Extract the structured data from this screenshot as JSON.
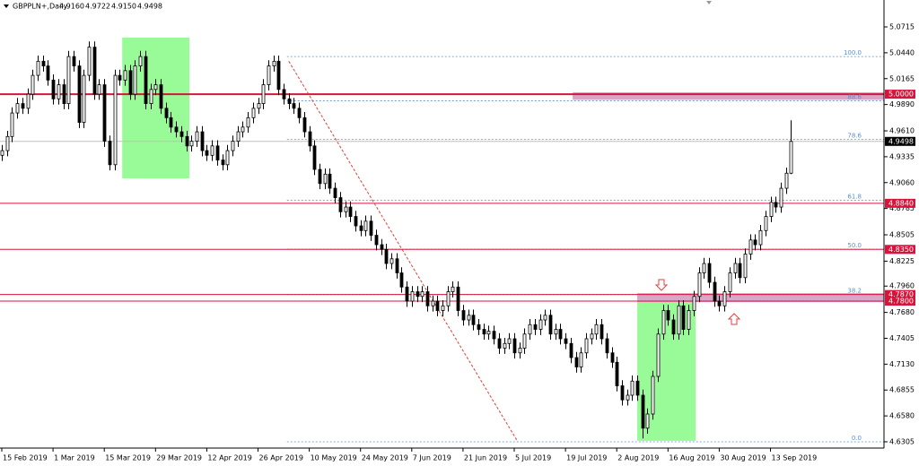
{
  "chart_data": {
    "type": "candlestick",
    "title": "GBPPLN+,Daily",
    "header_values": [
      "4.9160",
      "4.9722",
      "4.9150",
      "4.9498"
    ],
    "open": [
      4.935,
      4.94,
      4.955,
      4.98,
      4.99,
      4.985,
      5.0,
      5.02,
      5.035,
      5.03,
      5.015,
      4.995,
      5.01,
      4.99,
      5.04,
      5.03,
      4.97,
      5.02,
      5.05,
      5.0,
      5.01,
      4.95,
      4.925,
      5.02,
      5.015,
      5.025,
      5.0,
      5.03,
      5.04,
      4.99,
      5.005,
      5.01,
      4.985,
      4.975,
      4.965,
      4.96,
      4.955,
      4.945,
      4.95,
      4.96,
      4.94,
      4.935,
      4.945,
      4.93,
      4.925,
      4.94,
      4.95,
      4.96,
      4.965,
      4.975,
      4.985,
      4.99,
      5.01,
      5.03,
      5.035,
      5.005,
      4.995,
      4.99,
      4.985,
      4.975,
      4.96,
      4.945,
      4.92,
      4.905,
      4.915,
      4.9,
      4.89,
      4.875,
      4.88,
      4.87,
      4.86,
      4.855,
      4.865,
      4.85,
      4.84,
      4.835,
      4.82,
      4.825,
      4.81,
      4.795,
      4.78,
      4.79,
      4.785,
      4.79,
      4.775,
      4.78,
      4.77,
      4.775,
      4.79,
      4.795,
      4.77,
      4.76,
      4.765,
      4.755,
      4.75,
      4.745,
      4.748,
      4.74,
      4.73,
      4.735,
      4.74,
      4.725,
      4.73,
      4.745,
      4.755,
      4.75,
      4.76,
      4.765,
      4.745,
      4.75,
      4.74,
      4.735,
      4.72,
      4.71,
      4.725,
      4.74,
      4.745,
      4.755,
      4.74,
      4.725,
      4.715,
      4.69,
      4.675,
      4.68,
      4.695,
      4.68,
      4.645,
      4.66,
      4.7,
      4.745,
      4.77,
      4.76,
      4.745,
      4.775,
      4.75,
      4.77,
      4.785,
      4.81,
      4.82,
      4.8,
      4.78,
      4.775,
      4.79,
      4.81,
      4.82,
      4.805,
      4.83,
      4.845,
      4.84,
      4.855,
      4.87,
      4.885,
      4.88,
      4.9,
      4.916
    ],
    "high": [
      4.946,
      4.961,
      4.986,
      4.996,
      4.996,
      5.006,
      5.026,
      5.041,
      5.041,
      5.036,
      5.021,
      5.016,
      5.016,
      5.046,
      5.046,
      5.036,
      5.026,
      5.056,
      5.056,
      5.016,
      5.016,
      4.956,
      5.026,
      5.026,
      5.031,
      5.031,
      5.036,
      5.046,
      5.046,
      5.011,
      5.016,
      5.016,
      4.991,
      4.981,
      4.971,
      4.966,
      4.961,
      4.956,
      4.966,
      4.966,
      4.946,
      4.951,
      4.951,
      4.936,
      4.946,
      4.956,
      4.966,
      4.971,
      4.981,
      4.991,
      4.996,
      5.016,
      5.036,
      5.041,
      5.041,
      5.011,
      5.001,
      4.996,
      4.991,
      4.981,
      4.966,
      4.951,
      4.926,
      4.921,
      4.921,
      4.906,
      4.896,
      4.886,
      4.886,
      4.876,
      4.866,
      4.871,
      4.871,
      4.856,
      4.846,
      4.841,
      4.831,
      4.831,
      4.816,
      4.801,
      4.796,
      4.796,
      4.796,
      4.796,
      4.786,
      4.786,
      4.781,
      4.796,
      4.801,
      4.801,
      4.776,
      4.771,
      4.771,
      4.761,
      4.756,
      4.754,
      4.754,
      4.746,
      4.741,
      4.746,
      4.746,
      4.736,
      4.751,
      4.761,
      4.761,
      4.766,
      4.771,
      4.771,
      4.756,
      4.756,
      4.746,
      4.741,
      4.726,
      4.731,
      4.746,
      4.751,
      4.761,
      4.761,
      4.746,
      4.731,
      4.721,
      4.696,
      4.686,
      4.701,
      4.701,
      4.686,
      4.666,
      4.706,
      4.751,
      4.776,
      4.776,
      4.766,
      4.781,
      4.781,
      4.776,
      4.791,
      4.816,
      4.826,
      4.826,
      4.806,
      4.786,
      4.796,
      4.816,
      4.826,
      4.826,
      4.836,
      4.851,
      4.851,
      4.861,
      4.876,
      4.891,
      4.891,
      4.906,
      4.922,
      4.9722
    ],
    "low": [
      4.929,
      4.934,
      4.949,
      4.974,
      4.979,
      4.979,
      4.994,
      5.014,
      5.024,
      5.009,
      4.989,
      4.989,
      4.984,
      4.984,
      5.024,
      4.964,
      4.964,
      5.014,
      4.994,
      4.994,
      4.944,
      4.919,
      4.919,
      5.009,
      5.009,
      4.994,
      4.994,
      5.024,
      4.984,
      4.984,
      4.999,
      4.979,
      4.969,
      4.959,
      4.954,
      4.949,
      4.939,
      4.939,
      4.944,
      4.934,
      4.929,
      4.929,
      4.924,
      4.919,
      4.919,
      4.934,
      4.944,
      4.954,
      4.959,
      4.969,
      4.979,
      4.984,
      5.004,
      5.024,
      4.999,
      4.989,
      4.984,
      4.979,
      4.969,
      4.954,
      4.939,
      4.914,
      4.899,
      4.899,
      4.894,
      4.884,
      4.869,
      4.869,
      4.864,
      4.854,
      4.849,
      4.849,
      4.844,
      4.834,
      4.829,
      4.814,
      4.814,
      4.804,
      4.789,
      4.774,
      4.774,
      4.779,
      4.779,
      4.769,
      4.769,
      4.764,
      4.764,
      4.769,
      4.784,
      4.764,
      4.754,
      4.754,
      4.749,
      4.744,
      4.739,
      4.739,
      4.734,
      4.724,
      4.724,
      4.729,
      4.719,
      4.719,
      4.724,
      4.739,
      4.744,
      4.744,
      4.754,
      4.739,
      4.739,
      4.734,
      4.729,
      4.714,
      4.704,
      4.704,
      4.719,
      4.734,
      4.739,
      4.734,
      4.719,
      4.709,
      4.684,
      4.669,
      4.669,
      4.674,
      4.674,
      4.634,
      4.639,
      4.654,
      4.694,
      4.739,
      4.754,
      4.739,
      4.739,
      4.744,
      4.744,
      4.764,
      4.779,
      4.804,
      4.794,
      4.774,
      4.769,
      4.769,
      4.784,
      4.804,
      4.799,
      4.799,
      4.824,
      4.834,
      4.834,
      4.849,
      4.864,
      4.874,
      4.874,
      4.894,
      4.915
    ],
    "close": [
      4.94,
      4.955,
      4.98,
      4.99,
      4.985,
      5.0,
      5.02,
      5.035,
      5.03,
      5.015,
      4.995,
      5.01,
      4.99,
      5.04,
      5.03,
      4.97,
      5.02,
      5.05,
      5.0,
      5.01,
      4.95,
      4.925,
      5.02,
      5.015,
      5.025,
      5.0,
      5.03,
      5.04,
      4.99,
      5.005,
      5.01,
      4.985,
      4.975,
      4.965,
      4.96,
      4.955,
      4.945,
      4.95,
      4.96,
      4.94,
      4.935,
      4.945,
      4.93,
      4.925,
      4.94,
      4.95,
      4.96,
      4.965,
      4.975,
      4.985,
      4.99,
      5.01,
      5.03,
      5.035,
      5.005,
      4.995,
      4.99,
      4.985,
      4.975,
      4.96,
      4.945,
      4.92,
      4.905,
      4.915,
      4.9,
      4.89,
      4.875,
      4.88,
      4.87,
      4.86,
      4.855,
      4.865,
      4.85,
      4.84,
      4.835,
      4.82,
      4.825,
      4.81,
      4.795,
      4.78,
      4.79,
      4.785,
      4.79,
      4.775,
      4.78,
      4.77,
      4.775,
      4.79,
      4.795,
      4.77,
      4.76,
      4.765,
      4.755,
      4.75,
      4.745,
      4.748,
      4.74,
      4.73,
      4.735,
      4.74,
      4.725,
      4.73,
      4.745,
      4.755,
      4.75,
      4.76,
      4.765,
      4.745,
      4.75,
      4.74,
      4.735,
      4.72,
      4.71,
      4.725,
      4.74,
      4.745,
      4.755,
      4.74,
      4.725,
      4.715,
      4.69,
      4.675,
      4.68,
      4.695,
      4.68,
      4.645,
      4.66,
      4.7,
      4.745,
      4.77,
      4.76,
      4.745,
      4.775,
      4.75,
      4.77,
      4.785,
      4.81,
      4.82,
      4.8,
      4.78,
      4.775,
      4.79,
      4.81,
      4.82,
      4.805,
      4.83,
      4.845,
      4.84,
      4.855,
      4.87,
      4.885,
      4.88,
      4.9,
      4.916,
      4.9498
    ],
    "bull_color": "#ffffff",
    "bear_color": "#000000",
    "xlim": [
      -0.35,
      172.15
    ],
    "xticks": [
      {
        "value": 0,
        "label": "15 Feb 2019"
      },
      {
        "value": 10,
        "label": "1 Mar 2019"
      },
      {
        "value": 20,
        "label": "15 Mar 2019"
      },
      {
        "value": 30,
        "label": "29 Mar 2019"
      },
      {
        "value": 40,
        "label": "12 Apr 2019"
      },
      {
        "value": 50,
        "label": "26 Apr 2019"
      },
      {
        "value": 60,
        "label": "10 May 2019"
      },
      {
        "value": 70,
        "label": "24 May 2019"
      },
      {
        "value": 80,
        "label": "7 Jun 2019"
      },
      {
        "value": 90,
        "label": "21 Jun 2019"
      },
      {
        "value": 100,
        "label": "5 Jul 2019"
      },
      {
        "value": 110,
        "label": "19 Jul 2019"
      },
      {
        "value": 120,
        "label": "2 Aug 2019"
      },
      {
        "value": 130,
        "label": "16 Aug 2019"
      },
      {
        "value": 140,
        "label": "30 Aug 2019"
      },
      {
        "value": 150,
        "label": "13 Sep 2019"
      }
    ],
    "ylim": [
      4.6238,
      5.1001
    ],
    "yticks": [
      5.0715,
      {
        "value": 5.044,
        "label": "5.0440"
      },
      5.0165,
      {
        "value": 4.989,
        "label": "4.9890"
      },
      {
        "value": 4.961,
        "label": "4.9610"
      },
      4.9335,
      {
        "value": 4.906,
        "label": "4.9060"
      },
      4.8785,
      4.8505,
      4.8225,
      {
        "value": 4.796,
        "label": "4.7960"
      },
      {
        "value": 4.768,
        "label": "4.7680"
      },
      4.7405,
      {
        "value": 4.713,
        "label": "4.7130"
      },
      4.6855,
      {
        "value": 4.658,
        "label": "4.6580"
      },
      4.6305
    ],
    "levels": [
      {
        "value": 5.0,
        "label": "5.0000"
      },
      {
        "value": 4.884,
        "label": "4.8840"
      },
      {
        "value": 4.835,
        "label": "4.8350"
      },
      {
        "value": 4.787,
        "label": "4.7870"
      },
      {
        "value": 4.78,
        "label": "4.7800"
      }
    ],
    "level_color": "#d4163c",
    "last_price": 4.9498,
    "fibonacci": {
      "color": "#5b8fc7",
      "levels": [
        {
          "value": 5.04,
          "label": "100.0"
        },
        {
          "value": 4.993,
          "label": "88.6"
        },
        {
          "value": 4.952,
          "label": "78.6"
        },
        {
          "value": 4.887,
          "label": "61.8"
        },
        {
          "value": 4.8353,
          "label": "50.0"
        },
        {
          "value": 4.787,
          "label": "38.2"
        },
        {
          "value": 4.6305,
          "label": "0.0"
        }
      ]
    },
    "trendline": {
      "x": [
        56,
        100.7
      ],
      "y": [
        5.035,
        4.6305
      ],
      "color": "#e0403c"
    },
    "zones": [
      {
        "x": [
          23.5,
          36.6
        ],
        "y": [
          4.9105,
          5.0601
        ],
        "color": "#98fb98"
      },
      {
        "x": [
          124,
          135.4
        ],
        "y": [
          4.6315,
          4.781
        ],
        "color": "#98fb98"
      },
      {
        "x": [
          111.4,
          172.15
        ],
        "y": [
          4.994,
          5.002
        ],
        "color": "#d9a6c8"
      },
      {
        "x": [
          124,
          172.15
        ],
        "y": [
          4.779,
          4.7885
        ],
        "color": "#d9a6c8"
      }
    ]
  }
}
